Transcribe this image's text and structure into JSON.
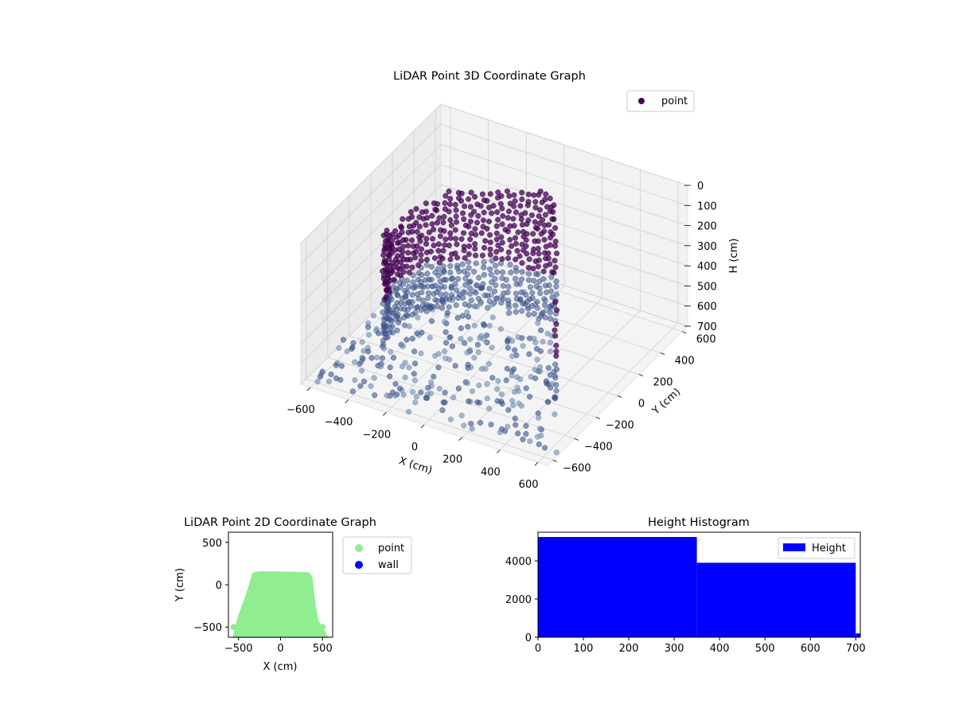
{
  "chart_data": [
    {
      "type": "scatter",
      "projection": "3d",
      "title": "LiDAR Point 3D Coordinate Graph",
      "xlabel": "X (cm)",
      "ylabel": "Y (cm)",
      "zlabel": "H (cm)",
      "xlim": [
        -650,
        650
      ],
      "ylim": [
        -650,
        650
      ],
      "zlim": [
        700,
        0
      ],
      "xticks": [
        "−600",
        "−400",
        "−200",
        "0",
        "200",
        "400",
        "600"
      ],
      "yticks": [
        "−600",
        "−400",
        "−200",
        "0",
        "200",
        "400",
        "600"
      ],
      "zticks": [
        "0",
        "100",
        "200",
        "300",
        "400",
        "500",
        "600",
        "700"
      ],
      "grid": true,
      "legend": {
        "position": "top-right",
        "entries": [
          "point"
        ]
      },
      "colormap": [
        "#440154",
        "#3b528b",
        "#6b8ab0"
      ],
      "series": [
        {
          "name": "point",
          "color": "#440154",
          "description_points": "dense ring of wall points from floor to H≈0–700 at radius ≈ 300–560 cm; floor scatter at H≈700",
          "arc": {
            "x_center": 0,
            "y_center": -80,
            "radius_x": 480,
            "radius_y": 420,
            "angle_start_deg": -20,
            "angle_end_deg": 200
          },
          "floor": {
            "x_range": [
              -620,
              640
            ],
            "y_range": [
              -600,
              450
            ],
            "h": 700
          }
        }
      ]
    },
    {
      "type": "scatter",
      "title": "LiDAR Point 2D Coordinate Graph",
      "xlabel": "X (cm)",
      "ylabel": "Y (cm)",
      "xlim": [
        -620,
        620
      ],
      "ylim": [
        -620,
        620
      ],
      "xticks": [
        "−500",
        "0",
        "500"
      ],
      "yticks": [
        "−500",
        "0",
        "500"
      ],
      "legend": {
        "position": "outside-right",
        "entries": [
          "point",
          "wall"
        ]
      },
      "series": [
        {
          "name": "point",
          "color": "#90ee90",
          "shape": "filled region",
          "extent": {
            "y_top": 150,
            "y_bottom": -620,
            "x_half_width_top": 380,
            "x_half_width_bottom": 560
          }
        },
        {
          "name": "wall",
          "color": "#0000ff",
          "values": []
        }
      ]
    },
    {
      "type": "bar",
      "subtype": "histogram",
      "title": "Height Histogram",
      "xlabel": "",
      "ylabel": "",
      "xlim": [
        0,
        710
      ],
      "ylim": [
        0,
        5500
      ],
      "xticks": [
        "0",
        "100",
        "200",
        "300",
        "400",
        "500",
        "600",
        "700"
      ],
      "yticks": [
        "0",
        "2000",
        "4000"
      ],
      "legend": {
        "position": "top-right",
        "entries": [
          "Height"
        ]
      },
      "series": [
        {
          "name": "Height",
          "color": "#0000ff",
          "bins": [
            [
              0,
              350
            ],
            [
              350,
              700
            ],
            [
              700,
              710
            ]
          ],
          "values": [
            5250,
            3900,
            200
          ]
        }
      ]
    }
  ]
}
